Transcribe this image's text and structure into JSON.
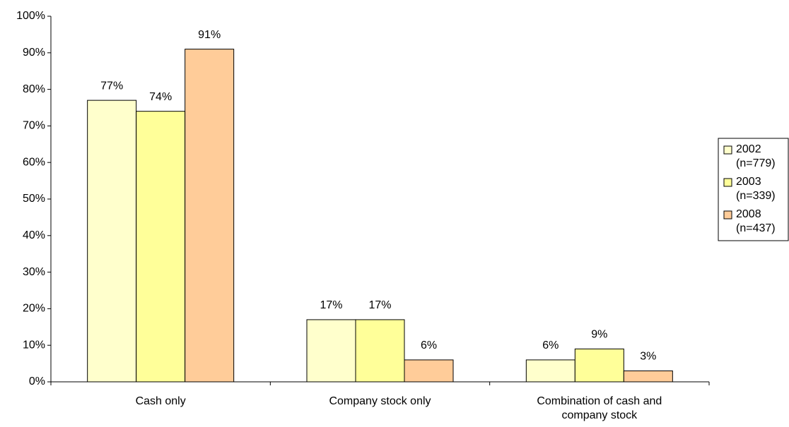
{
  "chart_data": {
    "type": "bar",
    "categories": [
      "Cash only",
      "Company stock only",
      "Combination of cash and company stock"
    ],
    "series": [
      {
        "name": "2002 (n=779)",
        "color": "#ffffcc",
        "values": [
          77,
          17,
          6
        ],
        "value_labels": [
          "77%",
          "17%",
          "6%"
        ]
      },
      {
        "name": "2003 (n=339)",
        "color": "#ffff99",
        "values": [
          74,
          17,
          9
        ],
        "value_labels": [
          "74%",
          "17%",
          "9%"
        ]
      },
      {
        "name": "2008 (n=437)",
        "color": "#ffcc99",
        "values": [
          91,
          6,
          3
        ],
        "value_labels": [
          "91%",
          "6%",
          "3%"
        ]
      }
    ],
    "ylim": [
      0,
      100
    ],
    "yticks": [
      {
        "value": 0,
        "label": "0%"
      },
      {
        "value": 10,
        "label": "10%"
      },
      {
        "value": 20,
        "label": "20%"
      },
      {
        "value": 30,
        "label": "30%"
      },
      {
        "value": 40,
        "label": "40%"
      },
      {
        "value": 50,
        "label": "50%"
      },
      {
        "value": 60,
        "label": "60%"
      },
      {
        "value": 70,
        "label": "70%"
      },
      {
        "value": 80,
        "label": "80%"
      },
      {
        "value": 90,
        "label": "90%"
      },
      {
        "value": 100,
        "label": "100%"
      }
    ],
    "grid": false,
    "legend": "right"
  }
}
